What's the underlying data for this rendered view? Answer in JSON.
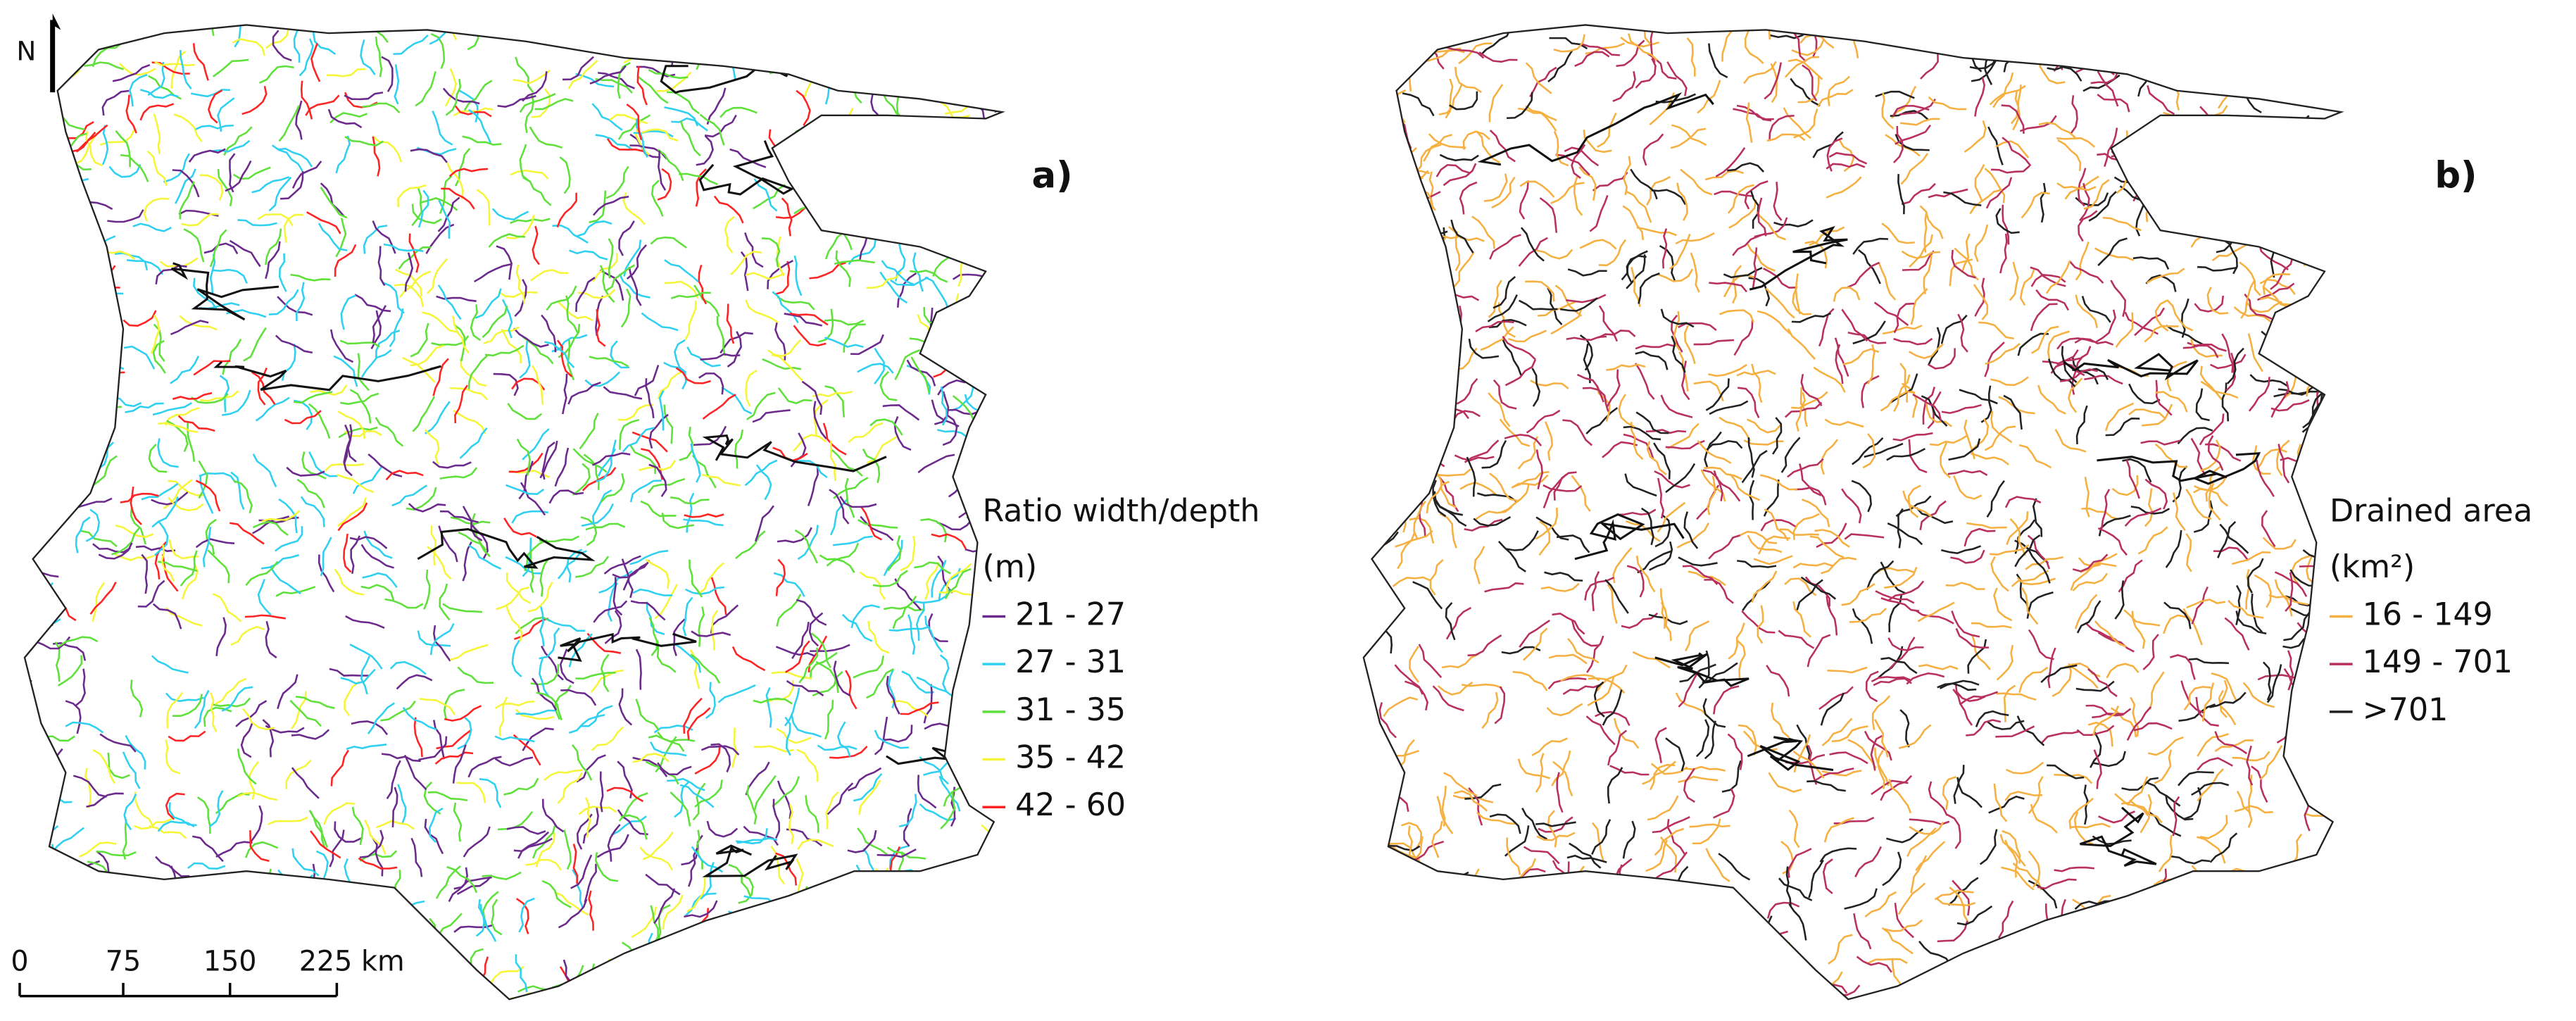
{
  "north_label": "N",
  "panels": [
    {
      "label": "a)",
      "legend": {
        "title": "Ratio width/depth",
        "unit": "(m)",
        "items": [
          {
            "label": "21 - 27",
            "color": "#6b2a8c"
          },
          {
            "label": "27 - 31",
            "color": "#2fd0f0"
          },
          {
            "label": "31 - 35",
            "color": "#5fe03a"
          },
          {
            "label": "35 - 42",
            "color": "#f5f53a"
          },
          {
            "label": "42 - 60",
            "color": "#ff2424"
          }
        ]
      }
    },
    {
      "label": "b)",
      "legend": {
        "title": "Drained area",
        "unit": "(km²)",
        "items": [
          {
            "label": "16 - 149",
            "color": "#f5b041"
          },
          {
            "label": "149 - 701",
            "color": "#b8305e"
          },
          {
            "label": ">701",
            "color": "#222222"
          }
        ]
      }
    }
  ],
  "scale_bar": {
    "labels": [
      "0",
      "75",
      "150",
      "225 km"
    ]
  }
}
